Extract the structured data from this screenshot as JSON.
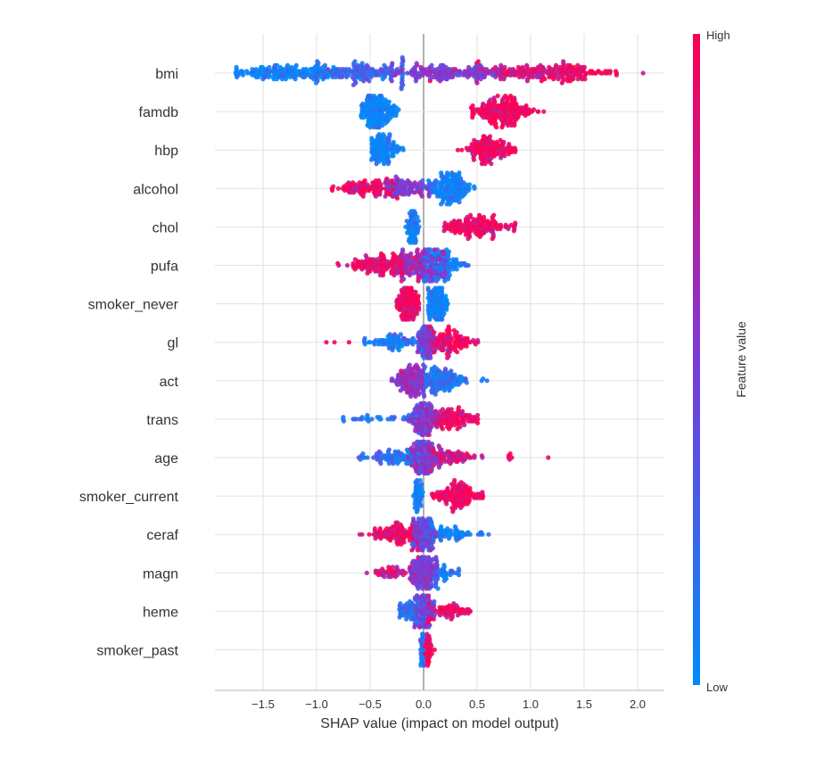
{
  "chart_data": {
    "type": "scatter",
    "subtype": "shap-beeswarm",
    "xlabel": "SHAP value (impact on model output)",
    "xlim": [
      -1.95,
      2.25
    ],
    "xticks": [
      -1.5,
      -1.0,
      -0.5,
      0.0,
      0.5,
      1.0,
      1.5,
      2.0
    ],
    "xtick_labels": [
      "−1.5",
      "−1.0",
      "−0.5",
      "0.0",
      "0.5",
      "1.0",
      "1.5",
      "2.0"
    ],
    "grid": true,
    "colorbar": {
      "label": "Feature value",
      "high_label": "High",
      "low_label": "Low",
      "high_color": "#ff0052",
      "low_color": "#008bfb"
    },
    "features": [
      {
        "name": "bmi",
        "clusters": [
          [
            -1.3,
            0.25,
            -1.75,
            -0.9,
            160,
            0.05
          ],
          [
            -0.6,
            0.25,
            -1.0,
            -0.2,
            160,
            0.25
          ],
          [
            0.2,
            0.3,
            -0.3,
            0.7,
            170,
            0.5
          ],
          [
            0.9,
            0.25,
            0.5,
            1.3,
            120,
            0.8
          ],
          [
            1.4,
            0.2,
            1.1,
            1.8,
            110,
            0.95
          ],
          [
            2.05,
            0,
            2.05,
            2.05,
            1,
            1
          ]
        ]
      },
      {
        "name": "famdb",
        "clusters": [
          [
            -0.43,
            0.08,
            -0.58,
            -0.2,
            200,
            0.02
          ],
          [
            0.75,
            0.15,
            0.45,
            1.2,
            200,
            0.97
          ]
        ]
      },
      {
        "name": "hbp",
        "clusters": [
          [
            -0.37,
            0.07,
            -0.48,
            -0.15,
            120,
            0.02
          ],
          [
            0.62,
            0.12,
            0.28,
            0.86,
            150,
            0.97
          ]
        ]
      },
      {
        "name": "alcohol",
        "clusters": [
          [
            -0.5,
            0.15,
            -0.85,
            -0.25,
            110,
            0.95
          ],
          [
            -0.15,
            0.12,
            -0.35,
            0.05,
            100,
            0.5
          ],
          [
            0.25,
            0.1,
            0.0,
            0.47,
            180,
            0.05
          ]
        ]
      },
      {
        "name": "chol",
        "clusters": [
          [
            -0.1,
            0.03,
            -0.16,
            -0.05,
            90,
            0.05
          ],
          [
            0.5,
            0.15,
            0.2,
            0.85,
            160,
            0.97
          ]
        ]
      },
      {
        "name": "pufa",
        "clusters": [
          [
            -0.35,
            0.18,
            -0.8,
            -0.05,
            160,
            0.9
          ],
          [
            0.0,
            0.12,
            -0.2,
            0.2,
            160,
            0.55
          ],
          [
            0.15,
            0.1,
            0.0,
            0.45,
            120,
            0.1
          ]
        ]
      },
      {
        "name": "smoker_never",
        "clusters": [
          [
            -0.15,
            0.05,
            -0.26,
            -0.05,
            160,
            0.98
          ],
          [
            0.13,
            0.05,
            0.05,
            0.25,
            130,
            0.02
          ]
        ]
      },
      {
        "name": "gl",
        "clusters": [
          [
            -0.8,
            0.08,
            -0.9,
            -0.7,
            3,
            1
          ],
          [
            -0.25,
            0.15,
            -0.55,
            0.0,
            90,
            0.1
          ],
          [
            0.02,
            0.04,
            -0.05,
            0.1,
            120,
            0.5
          ],
          [
            0.25,
            0.12,
            0.05,
            0.5,
            110,
            0.95
          ]
        ]
      },
      {
        "name": "act",
        "clusters": [
          [
            -0.1,
            0.08,
            -0.3,
            0.0,
            150,
            0.6
          ],
          [
            0.15,
            0.12,
            0.0,
            0.4,
            150,
            0.15
          ],
          [
            0.55,
            0.03,
            0.5,
            0.6,
            3,
            0.1
          ]
        ]
      },
      {
        "name": "trans",
        "clusters": [
          [
            -0.4,
            0.2,
            -0.75,
            -0.1,
            30,
            0.1
          ],
          [
            0.0,
            0.06,
            -0.15,
            0.15,
            150,
            0.5
          ],
          [
            0.25,
            0.12,
            0.05,
            0.5,
            110,
            0.95
          ]
        ]
      },
      {
        "name": "age",
        "clusters": [
          [
            -0.3,
            0.15,
            -0.6,
            -0.05,
            80,
            0.15
          ],
          [
            0.0,
            0.06,
            -0.15,
            0.15,
            160,
            0.5
          ],
          [
            0.25,
            0.13,
            0.05,
            0.55,
            80,
            0.8
          ],
          [
            0.8,
            0.04,
            0.75,
            0.85,
            5,
            1
          ],
          [
            1.17,
            0,
            1.17,
            1.17,
            1,
            1
          ]
        ]
      },
      {
        "name": "smoker_current",
        "clusters": [
          [
            -0.05,
            0.02,
            -0.1,
            0.0,
            70,
            0.05
          ],
          [
            0.3,
            0.12,
            0.08,
            0.55,
            140,
            0.97
          ]
        ]
      },
      {
        "name": "ceraf",
        "clusters": [
          [
            -0.25,
            0.15,
            -0.6,
            -0.05,
            120,
            0.92
          ],
          [
            0.0,
            0.06,
            -0.1,
            0.12,
            130,
            0.45
          ],
          [
            0.25,
            0.15,
            0.05,
            0.6,
            80,
            0.05
          ]
        ]
      },
      {
        "name": "magn",
        "clusters": [
          [
            -0.25,
            0.12,
            -0.55,
            -0.05,
            50,
            0.8
          ],
          [
            0.0,
            0.06,
            -0.12,
            0.12,
            180,
            0.5
          ],
          [
            0.2,
            0.07,
            0.05,
            0.33,
            40,
            0.1
          ]
        ]
      },
      {
        "name": "heme",
        "clusters": [
          [
            -0.1,
            0.07,
            -0.22,
            0.0,
            80,
            0.2
          ],
          [
            0.0,
            0.05,
            -0.1,
            0.1,
            130,
            0.5
          ],
          [
            0.25,
            0.12,
            0.05,
            0.48,
            70,
            0.95
          ]
        ]
      },
      {
        "name": "smoker_past",
        "clusters": [
          [
            -0.01,
            0.01,
            -0.04,
            0.01,
            80,
            0.1
          ],
          [
            0.05,
            0.02,
            0.01,
            0.1,
            40,
            0.97
          ]
        ]
      }
    ]
  }
}
